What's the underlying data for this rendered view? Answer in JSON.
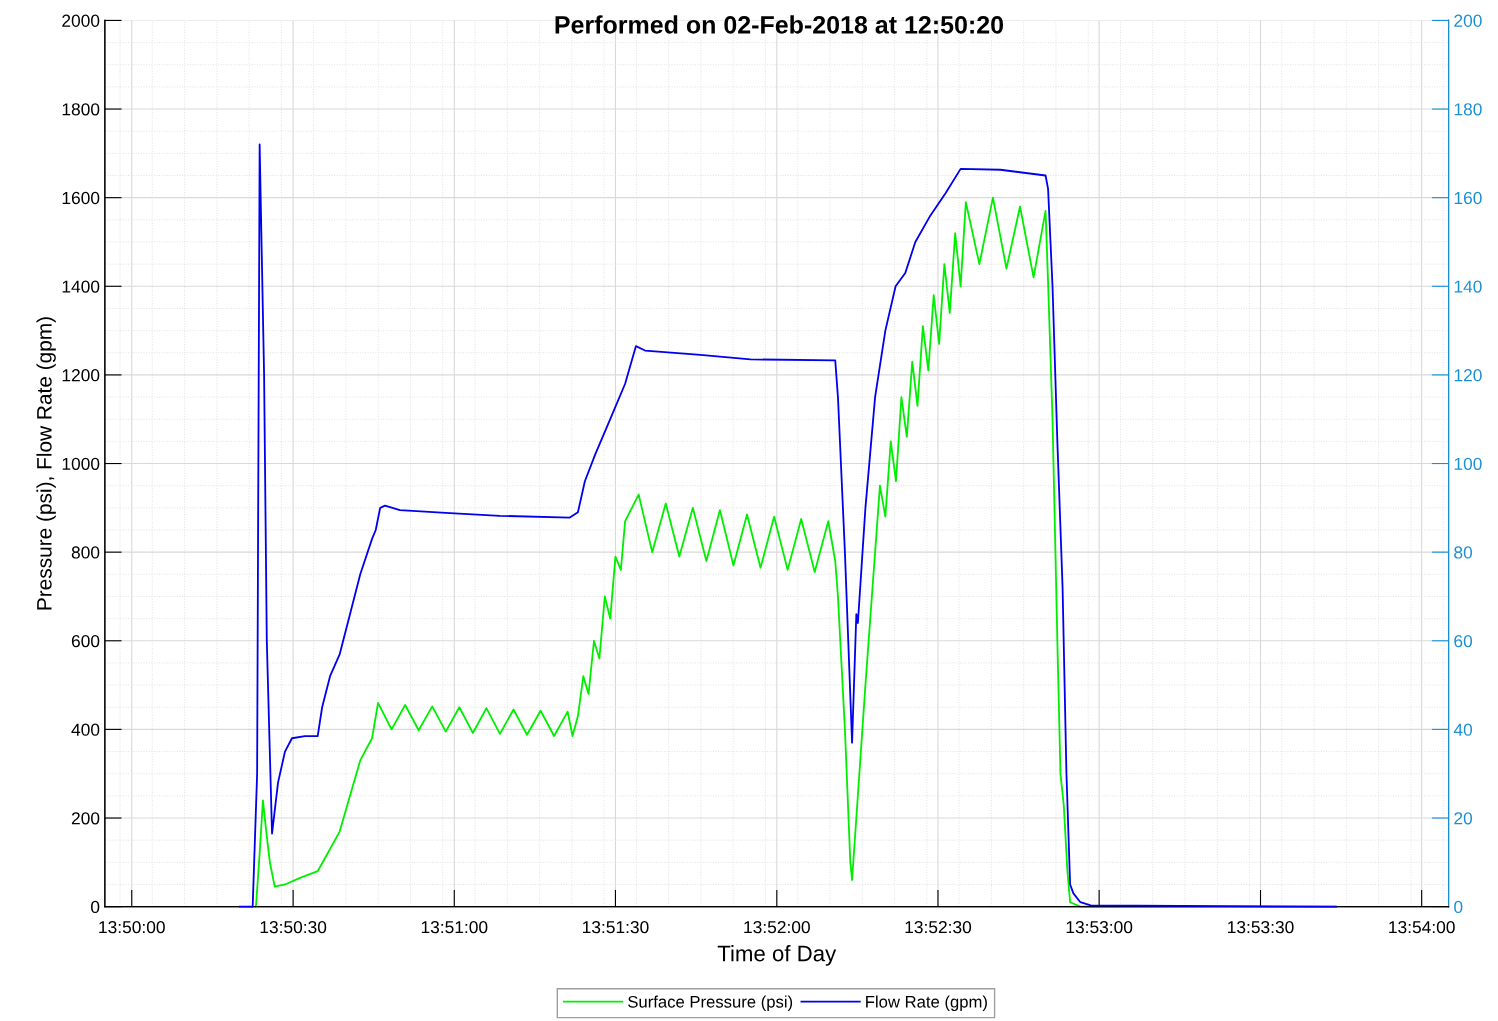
{
  "chart_data": {
    "type": "line",
    "title": "Performed on 02-Feb-2018 at 12:50:20",
    "xlabel": "Time of Day",
    "ylabel": "Pressure (psi), Flow Rate (gpm)",
    "xlim": [
      13.83194,
      13.90139
    ],
    "xticks": [
      {
        "value": 13.83333,
        "label": "13:50:00"
      },
      {
        "value": 13.84167,
        "label": "13:50:30"
      },
      {
        "value": 13.85,
        "label": "13:51:00"
      },
      {
        "value": 13.85833,
        "label": "13:51:30"
      },
      {
        "value": 13.86667,
        "label": "13:52:00"
      },
      {
        "value": 13.875,
        "label": "13:52:30"
      },
      {
        "value": 13.88333,
        "label": "13:53:00"
      },
      {
        "value": 13.89167,
        "label": "13:53:30"
      },
      {
        "value": 13.9,
        "label": "13:54:00"
      }
    ],
    "ylim": [
      0,
      2000
    ],
    "yticks": [
      0,
      200,
      400,
      600,
      800,
      1000,
      1200,
      1400,
      1600,
      1800,
      2000
    ],
    "y2lim": [
      0,
      200
    ],
    "y2ticks": [
      0,
      20,
      40,
      60,
      80,
      100,
      120,
      140,
      160,
      180,
      200
    ],
    "grid": true,
    "legend": "bottom",
    "marker": "none",
    "line_style": "solid",
    "series": [
      {
        "name": "Surface Pressure (psi)",
        "color": "#00ee00",
        "x": [
          13.83975,
          13.83994,
          13.84011,
          13.84028,
          13.84047,
          13.84072,
          13.84125,
          13.84203,
          13.84294,
          13.84358,
          13.84408,
          13.84461,
          13.84514,
          13.84575,
          13.84606,
          13.84676,
          13.84746,
          13.84816,
          13.84886,
          13.84956,
          13.85026,
          13.85096,
          13.85166,
          13.85236,
          13.85306,
          13.85376,
          13.85446,
          13.85516,
          13.85586,
          13.85611,
          13.85639,
          13.85667,
          13.85694,
          13.85722,
          13.8575,
          13.85778,
          13.85806,
          13.85833,
          13.85861,
          13.85883,
          13.85953,
          13.86023,
          13.86093,
          13.86163,
          13.86233,
          13.86303,
          13.86373,
          13.86443,
          13.86513,
          13.86583,
          13.86653,
          13.86723,
          13.86793,
          13.86863,
          13.86933,
          13.86969,
          13.86983,
          13.87019,
          13.87047,
          13.87056,
          13.87078,
          13.87125,
          13.87175,
          13.872,
          13.87228,
          13.87256,
          13.87283,
          13.87311,
          13.87339,
          13.87367,
          13.87394,
          13.87422,
          13.8745,
          13.87478,
          13.87506,
          13.87533,
          13.87561,
          13.87589,
          13.87617,
          13.87644,
          13.87714,
          13.87784,
          13.87854,
          13.87924,
          13.87994,
          13.88056,
          13.88069,
          13.88092,
          13.88117,
          13.88133,
          13.8815,
          13.88169,
          13.88183,
          13.88236,
          13.89556
        ],
        "values": [
          0,
          120,
          240,
          170,
          100,
          45,
          50,
          65,
          80,
          130,
          170,
          250,
          330,
          380,
          460,
          400,
          455,
          398,
          452,
          395,
          450,
          392,
          448,
          390,
          445,
          388,
          442,
          385,
          440,
          385,
          430,
          520,
          480,
          600,
          560,
          700,
          650,
          790,
          760,
          870,
          930,
          800,
          910,
          790,
          900,
          780,
          895,
          770,
          885,
          765,
          880,
          760,
          875,
          755,
          870,
          780,
          700,
          400,
          100,
          60,
          200,
          500,
          800,
          950,
          880,
          1050,
          960,
          1150,
          1060,
          1230,
          1130,
          1310,
          1210,
          1380,
          1270,
          1450,
          1340,
          1520,
          1400,
          1590,
          1450,
          1600,
          1440,
          1580,
          1420,
          1570,
          1410,
          1100,
          600,
          300,
          230,
          80,
          10,
          0,
          0
        ]
      },
      {
        "name": "Flow Rate (gpm)",
        "color": "#0000ee",
        "axis": "y2",
        "x": [
          13.83892,
          13.83958,
          13.83981,
          13.83994,
          13.84017,
          13.84031,
          13.84058,
          13.84089,
          13.84125,
          13.84161,
          13.84228,
          13.84294,
          13.84317,
          13.84358,
          13.84408,
          13.84461,
          13.84514,
          13.84575,
          13.84594,
          13.84617,
          13.84642,
          13.84719,
          13.84978,
          13.85236,
          13.85597,
          13.85639,
          13.85675,
          13.85728,
          13.85806,
          13.85883,
          13.85939,
          13.85986,
          13.86272,
          13.86531,
          13.86969,
          13.86983,
          13.87019,
          13.87056,
          13.87078,
          13.87086,
          13.87125,
          13.87175,
          13.87228,
          13.87281,
          13.87331,
          13.87383,
          13.87461,
          13.87539,
          13.87617,
          13.87822,
          13.88056,
          13.88069,
          13.88092,
          13.88117,
          13.88144,
          13.88164,
          13.88183,
          13.882,
          13.88236,
          13.88289,
          13.89556
        ],
        "values": [
          0,
          0,
          30,
          172,
          120,
          60,
          16.5,
          28,
          35,
          38,
          38.5,
          38.5,
          45,
          52,
          57,
          66,
          75,
          83,
          85,
          90,
          90.5,
          89.5,
          88.8,
          88.2,
          87.8,
          89,
          96,
          102,
          110,
          118,
          126.5,
          125.5,
          124.5,
          123.5,
          123.3,
          115,
          80,
          37,
          66,
          64,
          90,
          115,
          130,
          140,
          143,
          150,
          156,
          161,
          166.5,
          166.3,
          165,
          162,
          140,
          105,
          72,
          30,
          5,
          3,
          1,
          0.3,
          0
        ]
      }
    ]
  }
}
